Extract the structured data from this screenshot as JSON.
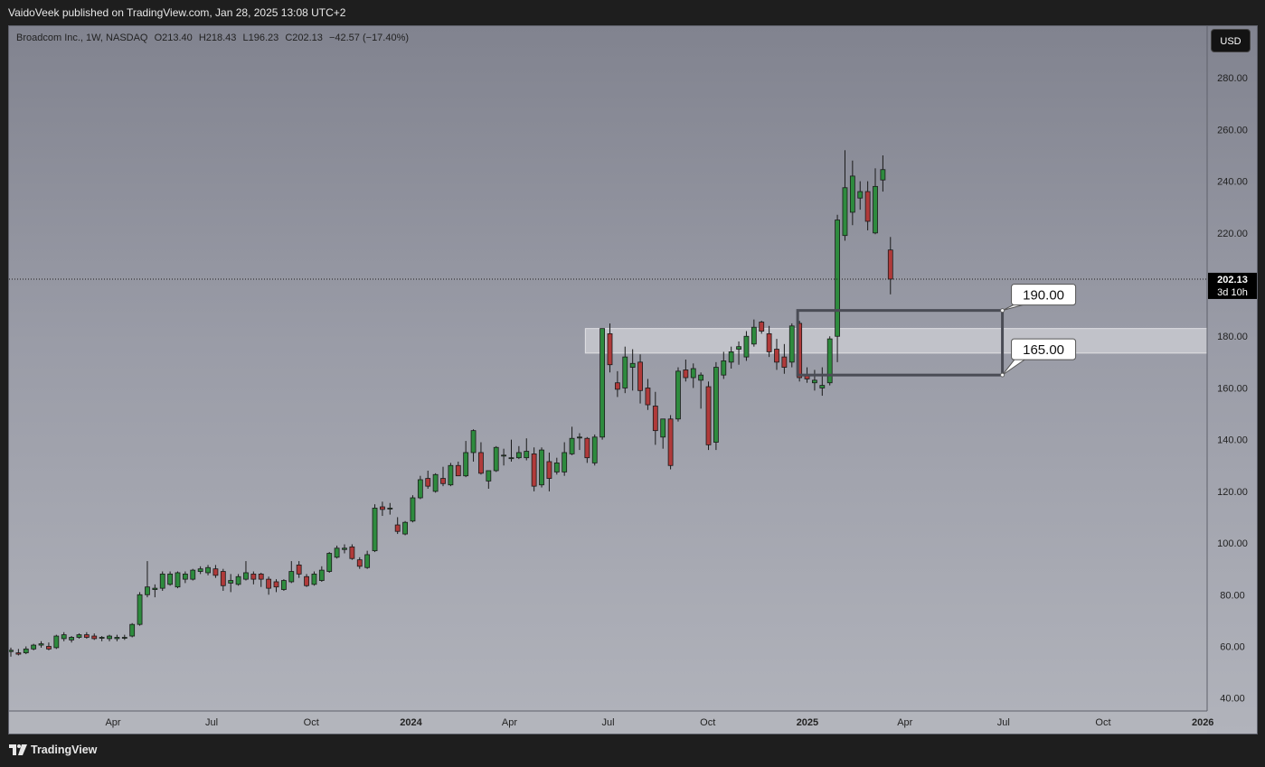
{
  "header": {
    "published_text": "VaidoVeek published on TradingView.com, Jan 28, 2025 13:08 UTC+2"
  },
  "legend": {
    "symbol": "Broadcom Inc., 1W, NASDAQ",
    "open": "O213.40",
    "high": "H218.43",
    "low": "L196.23",
    "close": "C202.13",
    "change": "−42.57 (−17.40%)"
  },
  "currency_button": "USD",
  "footer": {
    "brand": "TradingView",
    "logo_icon": "tradingview-logo-icon"
  },
  "colors": {
    "up": "#2e8b3e",
    "down": "#b03a3a",
    "zone_fill": "#c8c9cf",
    "box_stroke": "#4a4c55"
  },
  "chart_data": {
    "type": "candlestick",
    "interval": "1W",
    "ylim": [
      35,
      300
    ],
    "y_ticks": [
      40,
      60,
      80,
      100,
      120,
      140,
      160,
      180,
      200,
      220,
      240,
      260,
      280
    ],
    "y_tick_labels": [
      "40.00",
      "60.00",
      "80.00",
      "100.00",
      "120.00",
      "140.00",
      "160.00",
      "180.00",
      "200.00",
      "220.00",
      "240.00",
      "260.00",
      "280.00"
    ],
    "x_start": "2022-12-26",
    "x_end": "2026-01-05",
    "x_ticks": [
      {
        "date": "2023-04-01",
        "label": "Apr",
        "bold": false
      },
      {
        "date": "2023-07-01",
        "label": "Jul",
        "bold": false
      },
      {
        "date": "2023-10-01",
        "label": "Oct",
        "bold": false
      },
      {
        "date": "2024-01-01",
        "label": "2024",
        "bold": true
      },
      {
        "date": "2024-04-01",
        "label": "Apr",
        "bold": false
      },
      {
        "date": "2024-07-01",
        "label": "Jul",
        "bold": false
      },
      {
        "date": "2024-10-01",
        "label": "Oct",
        "bold": false
      },
      {
        "date": "2025-01-01",
        "label": "2025",
        "bold": true
      },
      {
        "date": "2025-04-01",
        "label": "Apr",
        "bold": false
      },
      {
        "date": "2025-07-01",
        "label": "Jul",
        "bold": false
      },
      {
        "date": "2025-10-01",
        "label": "Oct",
        "bold": false
      },
      {
        "date": "2026-01-01",
        "label": "2026",
        "bold": true
      }
    ],
    "candles": [
      [
        58.0,
        59.5,
        56.0,
        58.5
      ],
      [
        57.5,
        59.0,
        56.5,
        57.0
      ],
      [
        57.5,
        60.0,
        57.0,
        59.0
      ],
      [
        59.0,
        61.0,
        58.5,
        60.5
      ],
      [
        60.5,
        62.0,
        59.5,
        61.0
      ],
      [
        60.0,
        61.5,
        58.5,
        59.0
      ],
      [
        59.5,
        64.5,
        59.0,
        64.0
      ],
      [
        63.0,
        65.5,
        62.0,
        64.5
      ],
      [
        62.5,
        64.0,
        61.5,
        63.5
      ],
      [
        63.5,
        65.0,
        63.0,
        64.5
      ],
      [
        64.5,
        65.5,
        63.0,
        63.5
      ],
      [
        64.0,
        65.0,
        62.5,
        63.0
      ],
      [
        63.5,
        64.0,
        62.0,
        63.5
      ],
      [
        63.0,
        64.5,
        62.0,
        64.0
      ],
      [
        63.0,
        64.5,
        62.0,
        63.5
      ],
      [
        63.5,
        64.5,
        62.5,
        63.5
      ],
      [
        64.0,
        69.0,
        63.5,
        68.5
      ],
      [
        68.5,
        81.0,
        68.0,
        80.0
      ],
      [
        80.0,
        93.0,
        79.0,
        83.0
      ],
      [
        82.0,
        84.0,
        79.0,
        82.5
      ],
      [
        82.5,
        89.0,
        81.5,
        88.0
      ],
      [
        84.0,
        89.0,
        83.5,
        88.0
      ],
      [
        83.0,
        89.0,
        82.5,
        88.5
      ],
      [
        86.0,
        89.0,
        84.5,
        88.0
      ],
      [
        86.0,
        90.0,
        85.5,
        89.5
      ],
      [
        89.0,
        91.0,
        88.0,
        90.0
      ],
      [
        88.5,
        91.5,
        87.5,
        90.5
      ],
      [
        90.0,
        91.5,
        86.5,
        87.5
      ],
      [
        89.0,
        90.0,
        81.5,
        83.5
      ],
      [
        84.5,
        88.0,
        81.0,
        85.5
      ],
      [
        84.0,
        88.0,
        83.5,
        87.0
      ],
      [
        86.0,
        93.0,
        85.5,
        88.5
      ],
      [
        88.0,
        89.0,
        84.0,
        86.0
      ],
      [
        88.0,
        88.5,
        83.0,
        86.0
      ],
      [
        86.0,
        87.0,
        80.0,
        82.5
      ],
      [
        85.0,
        86.0,
        81.0,
        83.0
      ],
      [
        82.0,
        86.0,
        81.5,
        85.5
      ],
      [
        85.0,
        93.0,
        84.5,
        89.0
      ],
      [
        91.5,
        93.0,
        86.5,
        88.0
      ],
      [
        87.0,
        88.0,
        83.0,
        83.5
      ],
      [
        84.0,
        89.0,
        83.5,
        88.0
      ],
      [
        85.5,
        91.0,
        85.0,
        89.5
      ],
      [
        89.0,
        96.5,
        88.5,
        96.0
      ],
      [
        94.5,
        99.0,
        94.0,
        98.0
      ],
      [
        97.5,
        99.5,
        96.0,
        98.0
      ],
      [
        98.5,
        99.5,
        93.5,
        94.0
      ],
      [
        93.5,
        94.5,
        90.0,
        91.0
      ],
      [
        90.5,
        97.0,
        90.0,
        95.5
      ],
      [
        97.0,
        115.0,
        96.5,
        113.5
      ],
      [
        114.0,
        116.0,
        110.5,
        113.0
      ],
      [
        113.5,
        115.5,
        111.0,
        113.5
      ],
      [
        107.0,
        110.0,
        103.5,
        104.5
      ],
      [
        103.5,
        108.5,
        103.0,
        108.0
      ],
      [
        108.5,
        118.5,
        108.0,
        117.5
      ],
      [
        117.5,
        126.0,
        117.0,
        124.5
      ],
      [
        125.0,
        128.0,
        121.0,
        122.0
      ],
      [
        120.0,
        127.0,
        119.5,
        126.5
      ],
      [
        125.0,
        129.5,
        122.0,
        123.0
      ],
      [
        122.5,
        131.0,
        122.0,
        130.0
      ],
      [
        130.0,
        131.5,
        126.0,
        126.0
      ],
      [
        126.0,
        139.5,
        125.5,
        135.0
      ],
      [
        135.0,
        144.0,
        131.5,
        143.5
      ],
      [
        135.0,
        139.0,
        126.5,
        127.0
      ],
      [
        124.0,
        128.0,
        121.0,
        128.0
      ],
      [
        128.0,
        137.5,
        127.5,
        137.0
      ],
      [
        134.0,
        136.5,
        130.0,
        134.0
      ],
      [
        133.0,
        140.0,
        131.5,
        133.0
      ],
      [
        133.0,
        137.5,
        132.5,
        135.0
      ],
      [
        133.0,
        140.5,
        132.0,
        135.5
      ],
      [
        134.5,
        137.0,
        120.0,
        122.0
      ],
      [
        122.5,
        137.0,
        121.5,
        136.0
      ],
      [
        131.5,
        135.0,
        120.0,
        125.0
      ],
      [
        127.5,
        133.0,
        126.5,
        131.0
      ],
      [
        127.5,
        139.0,
        126.0,
        135.0
      ],
      [
        134.5,
        145.0,
        134.0,
        140.5
      ],
      [
        141.0,
        142.5,
        136.0,
        141.0
      ],
      [
        140.5,
        141.0,
        131.0,
        133.0
      ],
      [
        131.0,
        142.0,
        130.0,
        141.0
      ],
      [
        141.0,
        181.0,
        140.0,
        183.0
      ],
      [
        181.0,
        185.0,
        166.0,
        169.0
      ],
      [
        162.0,
        166.5,
        156.5,
        159.5
      ],
      [
        160.0,
        176.0,
        158.0,
        172.0
      ],
      [
        168.0,
        175.0,
        159.0,
        169.5
      ],
      [
        170.0,
        173.0,
        154.0,
        159.0
      ],
      [
        160.0,
        163.5,
        151.5,
        153.5
      ],
      [
        153.0,
        158.5,
        138.0,
        143.5
      ],
      [
        141.0,
        148.0,
        136.5,
        148.0
      ],
      [
        148.0,
        149.5,
        128.5,
        130.0
      ],
      [
        148.0,
        168.0,
        147.0,
        166.5
      ],
      [
        167.0,
        171.0,
        162.5,
        164.0
      ],
      [
        164.0,
        169.5,
        160.0,
        167.5
      ],
      [
        163.0,
        166.0,
        152.0,
        165.0
      ],
      [
        160.5,
        162.5,
        136.0,
        138.0
      ],
      [
        139.0,
        170.0,
        136.0,
        168.0
      ],
      [
        165.0,
        174.0,
        163.5,
        170.5
      ],
      [
        170.0,
        176.0,
        167.5,
        174.0
      ],
      [
        175.0,
        178.0,
        169.0,
        176.0
      ],
      [
        172.0,
        182.0,
        170.5,
        180.0
      ],
      [
        177.0,
        186.5,
        176.0,
        183.5
      ],
      [
        185.5,
        186.0,
        181.0,
        182.0
      ],
      [
        181.0,
        184.0,
        172.0,
        174.0
      ],
      [
        175.0,
        179.0,
        167.0,
        170.0
      ],
      [
        172.0,
        177.0,
        165.5,
        168.0
      ],
      [
        170.0,
        185.0,
        168.0,
        184.0
      ],
      [
        185.0,
        186.0,
        162.5,
        164.0
      ],
      [
        165.0,
        168.0,
        162.0,
        163.5
      ],
      [
        162.0,
        167.0,
        159.0,
        163.0
      ],
      [
        160.0,
        168.0,
        157.0,
        161.0
      ],
      [
        162.0,
        180.0,
        161.0,
        179.0
      ],
      [
        180.0,
        227.0,
        170.0,
        225.0
      ],
      [
        219.0,
        252.0,
        217.0,
        237.5
      ],
      [
        228.0,
        248.0,
        223.0,
        242.0
      ],
      [
        233.5,
        240.0,
        229.0,
        236.0
      ],
      [
        236.0,
        240.0,
        221.0,
        224.5
      ],
      [
        220.0,
        245.0,
        219.5,
        238.0
      ],
      [
        240.5,
        250.0,
        236.0,
        244.5
      ],
      [
        213.4,
        218.43,
        196.23,
        202.13
      ]
    ],
    "last_price": {
      "value": 202.13,
      "label": "202.13",
      "countdown": "3d 10h"
    },
    "zone": {
      "low": 173.5,
      "high": 183.0
    },
    "box": {
      "start": "2024-12-23",
      "end": "2025-06-30",
      "top": 190,
      "bottom": 165
    },
    "annotations": [
      {
        "text": "190.00",
        "price": 190
      },
      {
        "text": "165.00",
        "price": 165
      }
    ]
  }
}
